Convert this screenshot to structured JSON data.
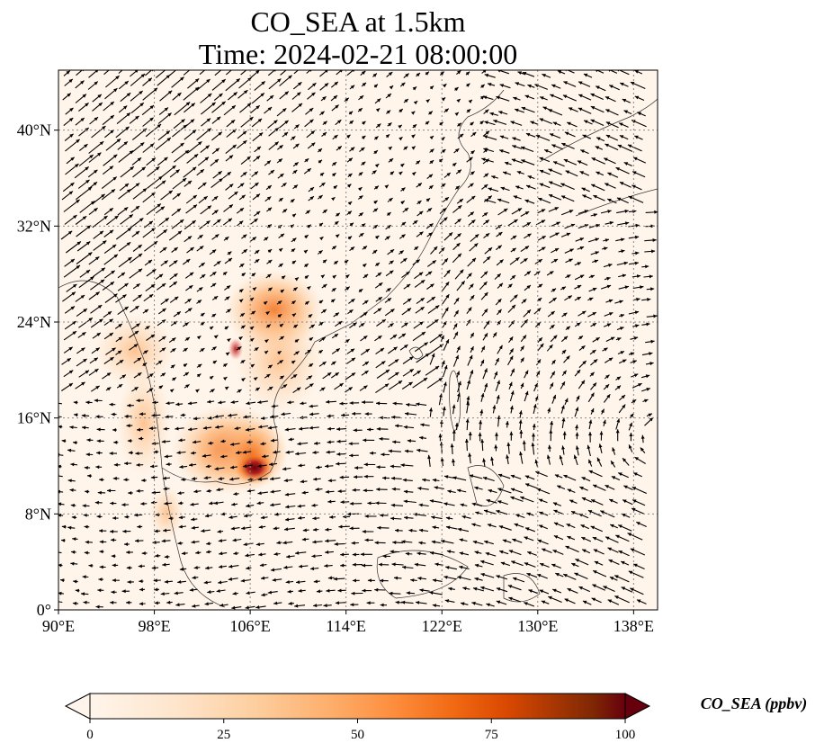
{
  "title": {
    "line1": "CO_SEA at 1.5km",
    "line2": "Time: 2024-02-21 08:00:00"
  },
  "map": {
    "x_ticks": [
      "90°E",
      "98°E",
      "106°E",
      "114°E",
      "122°E",
      "130°E",
      "138°E"
    ],
    "y_ticks": [
      "0°",
      "8°N",
      "16°N",
      "24°N",
      "32°N",
      "40°N"
    ],
    "lon_range": [
      90,
      140
    ],
    "lat_range": [
      0,
      45
    ],
    "gridlines": "dotted",
    "background_color": "#fff5eb",
    "plume_colors": [
      "#fdd0a2",
      "#f16913",
      "#a50f15",
      "#67000d"
    ],
    "vector_color": "#000000"
  },
  "colorbar": {
    "label": "CO_SEA (ppbv)",
    "ticks": [
      "0",
      "25",
      "50",
      "75",
      "100"
    ],
    "range": [
      0,
      100
    ],
    "colormap": [
      "#fff5eb",
      "#fee6ce",
      "#fdd0a2",
      "#fdae6b",
      "#fd8d3c",
      "#f16913",
      "#d94801",
      "#a63603",
      "#7f2704",
      "#67000d"
    ],
    "extend": "both"
  }
}
